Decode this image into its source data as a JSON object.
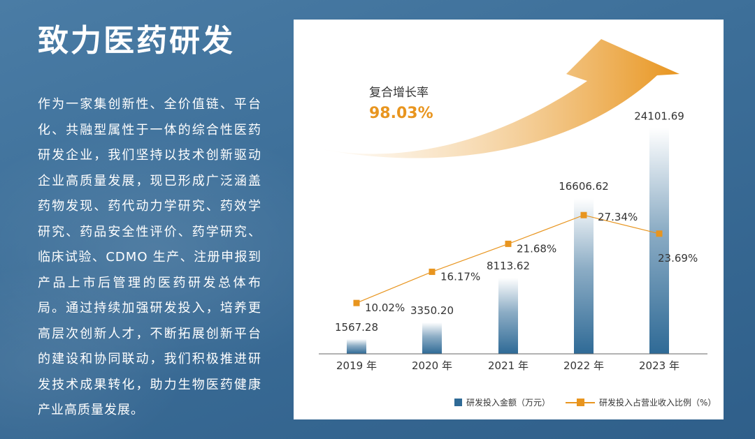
{
  "page": {
    "title": "致力医药研发",
    "intro": "作为一家集创新性、全价值链、平台化、共融型属性于一体的综合性医药研发企业，我们坚持以技术创新驱动企业高质量发展，现已形成广泛涵盖药物发现、药代动力学研究、药效学研究、药品安全性评价、药学研究、临床试验、CDMO 生产、注册申报到产品上市后管理的医药研发总体布局。通过持续加强研发投入，培养更高层次创新人才，不断拓展创新平台的建设和协同联动，我们积极推进研发技术成果转化，助力生物医药健康产业高质量发展。"
  },
  "cagr": {
    "label": "复合增长率",
    "value": "98.03%"
  },
  "colors": {
    "bar": "#2f6a96",
    "line": "#e8951f",
    "arrow": "#e8951f"
  },
  "chart_data": {
    "type": "bar",
    "title": "",
    "categories": [
      "2019 年",
      "2020 年",
      "2021 年",
      "2022 年",
      "2023 年"
    ],
    "series": [
      {
        "name": "研发投入金额（万元）",
        "type": "bar",
        "values": [
          1567.28,
          3350.2,
          8113.62,
          16606.62,
          24101.69
        ],
        "labels": [
          "1567.28",
          "3350.20",
          "8113.62",
          "16606.62",
          "24101.69"
        ]
      },
      {
        "name": "研发投入占营业收入比例（%）",
        "type": "line",
        "values": [
          10.02,
          16.17,
          21.68,
          27.34,
          23.69
        ],
        "labels": [
          "10.02%",
          "16.17%",
          "21.68%",
          "27.34%",
          "23.69%"
        ]
      }
    ],
    "ylim_bar": [
      0,
      26000
    ],
    "ylim_line": [
      0,
      48
    ],
    "legend_position": "bottom-right",
    "grid": false
  }
}
